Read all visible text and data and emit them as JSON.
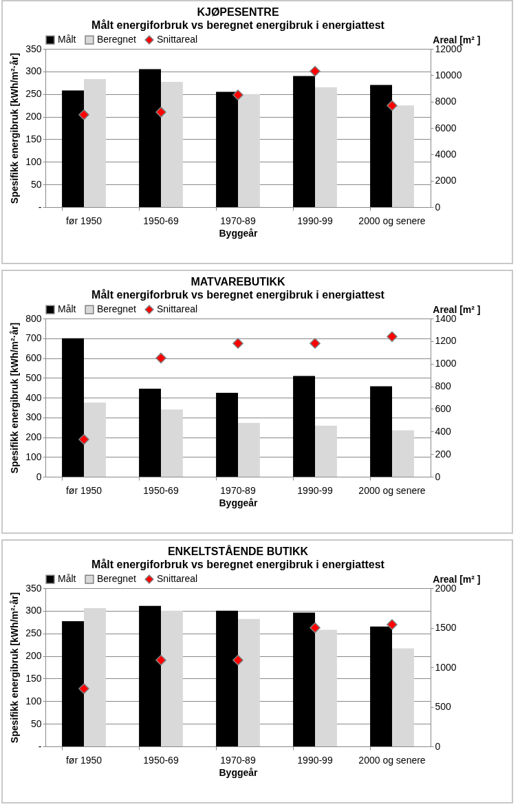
{
  "chart_data": [
    {
      "type": "bar",
      "title": "KJØPESENTRE",
      "subtitle": "Målt energiforbruk  vs beregnet energibruk i energiattest",
      "xlabel": "Byggeår",
      "ylabel": "Spesifikk energibruk [kWh/m²·år]",
      "y2label": "Areal [m² ]",
      "categories": [
        "før 1950",
        "1950-69",
        "1970-89",
        "1990-99",
        "2000 og senere"
      ],
      "series": [
        {
          "name": "Målt",
          "color": "#000000",
          "values": [
            258,
            305,
            255,
            290,
            270
          ]
        },
        {
          "name": "Beregnet",
          "color": "#d9d9d9",
          "values": [
            283,
            277,
            250,
            265,
            225
          ]
        },
        {
          "name": "Snittareal",
          "type": "scatter",
          "axis": "y2",
          "marker": "diamond",
          "color": "#ff0000",
          "values": [
            7000,
            7200,
            8500,
            10300,
            7700
          ]
        }
      ],
      "ylim": [
        0,
        350
      ],
      "yticks": [
        {
          "value": 0,
          "label": "-"
        },
        50,
        100,
        150,
        200,
        250,
        300,
        350
      ],
      "y2lim": [
        0,
        12000
      ],
      "y2ticks": [
        0,
        2000,
        4000,
        6000,
        8000,
        10000,
        12000
      ],
      "grid": "y",
      "legend": "top"
    },
    {
      "type": "bar",
      "title": "MATVAREBUTIKK",
      "subtitle": "Målt energiforbruk  vs beregnet energibruk i energiattest",
      "xlabel": "Byggeår",
      "ylabel": "Spesifikk energibruk [kWh/m²·år]",
      "y2label": "Areal [m² ]",
      "categories": [
        "før 1950",
        "1950-69",
        "1970-89",
        "1990-99",
        "2000 og senere"
      ],
      "series": [
        {
          "name": "Målt",
          "color": "#000000",
          "values": [
            700,
            445,
            424,
            510,
            457
          ]
        },
        {
          "name": "Beregnet",
          "color": "#d9d9d9",
          "values": [
            375,
            340,
            272,
            258,
            235
          ]
        },
        {
          "name": "Snittareal",
          "type": "scatter",
          "axis": "y2",
          "marker": "diamond",
          "color": "#ff0000",
          "values": [
            330,
            1050,
            1180,
            1180,
            1240
          ]
        }
      ],
      "ylim": [
        0,
        800
      ],
      "yticks": [
        0,
        100,
        200,
        300,
        400,
        500,
        600,
        700,
        800
      ],
      "y2lim": [
        0,
        1400
      ],
      "y2ticks": [
        0,
        200,
        400,
        600,
        800,
        1000,
        1200,
        1400
      ],
      "grid": "y",
      "legend": "top"
    },
    {
      "type": "bar",
      "title": "ENKELTSTÅENDE BUTIKK",
      "subtitle": "Målt energiforbruk  vs beregnet energibruk i energiattest",
      "xlabel": "Byggeår",
      "ylabel": "Spesifikk energibruk [kWh/m²·år]",
      "y2label": "Areal [m² ]",
      "categories": [
        "før 1950",
        "1950-69",
        "1970-89",
        "1990-99",
        "2000 og senere"
      ],
      "series": [
        {
          "name": "Målt",
          "color": "#000000",
          "values": [
            277,
            311,
            300,
            296,
            265
          ]
        },
        {
          "name": "Beregnet",
          "color": "#d9d9d9",
          "values": [
            306,
            300,
            282,
            258,
            217
          ]
        },
        {
          "name": "Snittareal",
          "type": "scatter",
          "axis": "y2",
          "marker": "diamond",
          "color": "#ff0000",
          "values": [
            730,
            1090,
            1090,
            1500,
            1540
          ]
        }
      ],
      "ylim": [
        0,
        350
      ],
      "yticks": [
        {
          "value": 0,
          "label": "-"
        },
        50,
        100,
        150,
        200,
        250,
        300,
        350
      ],
      "y2lim": [
        0,
        2000
      ],
      "y2ticks": [
        0,
        500,
        1000,
        1500,
        2000
      ],
      "grid": "y",
      "legend": "top"
    }
  ]
}
